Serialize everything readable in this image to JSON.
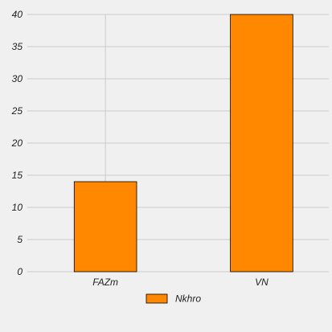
{
  "chart_data": {
    "type": "bar",
    "categories": [
      "FAZm",
      "VN"
    ],
    "series": [
      {
        "name": "Nkhro",
        "values": [
          14,
          40
        ],
        "color": "#ff8800"
      }
    ],
    "title": "",
    "xlabel": "",
    "ylabel": "",
    "ylim": [
      0,
      40
    ],
    "yticks": [
      0,
      5,
      10,
      15,
      20,
      25,
      30,
      35,
      40
    ],
    "grid": true,
    "legend": "bottom-center",
    "background": "#f0f0f0",
    "grid_color": "#cbcbcb"
  }
}
